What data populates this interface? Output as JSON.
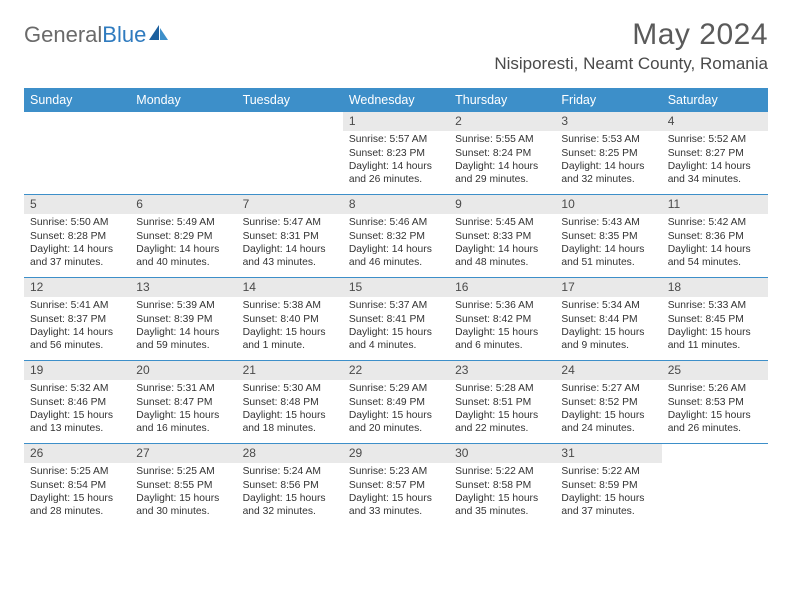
{
  "logo": {
    "part1": "General",
    "part2": "Blue"
  },
  "title": "May 2024",
  "location": "Nisiporesti, Neamt County, Romania",
  "colors": {
    "header_bg": "#3d8fc9",
    "daynum_bg": "#e9e9e9",
    "text": "#333333",
    "title": "#5a5a5a",
    "logo_gray": "#6a6a6a",
    "logo_blue": "#2f7bbf"
  },
  "dow": [
    "Sunday",
    "Monday",
    "Tuesday",
    "Wednesday",
    "Thursday",
    "Friday",
    "Saturday"
  ],
  "weeks": [
    [
      null,
      null,
      null,
      {
        "n": "1",
        "sr": "5:57 AM",
        "ss": "8:23 PM",
        "dl": "14 hours and 26 minutes."
      },
      {
        "n": "2",
        "sr": "5:55 AM",
        "ss": "8:24 PM",
        "dl": "14 hours and 29 minutes."
      },
      {
        "n": "3",
        "sr": "5:53 AM",
        "ss": "8:25 PM",
        "dl": "14 hours and 32 minutes."
      },
      {
        "n": "4",
        "sr": "5:52 AM",
        "ss": "8:27 PM",
        "dl": "14 hours and 34 minutes."
      }
    ],
    [
      {
        "n": "5",
        "sr": "5:50 AM",
        "ss": "8:28 PM",
        "dl": "14 hours and 37 minutes."
      },
      {
        "n": "6",
        "sr": "5:49 AM",
        "ss": "8:29 PM",
        "dl": "14 hours and 40 minutes."
      },
      {
        "n": "7",
        "sr": "5:47 AM",
        "ss": "8:31 PM",
        "dl": "14 hours and 43 minutes."
      },
      {
        "n": "8",
        "sr": "5:46 AM",
        "ss": "8:32 PM",
        "dl": "14 hours and 46 minutes."
      },
      {
        "n": "9",
        "sr": "5:45 AM",
        "ss": "8:33 PM",
        "dl": "14 hours and 48 minutes."
      },
      {
        "n": "10",
        "sr": "5:43 AM",
        "ss": "8:35 PM",
        "dl": "14 hours and 51 minutes."
      },
      {
        "n": "11",
        "sr": "5:42 AM",
        "ss": "8:36 PM",
        "dl": "14 hours and 54 minutes."
      }
    ],
    [
      {
        "n": "12",
        "sr": "5:41 AM",
        "ss": "8:37 PM",
        "dl": "14 hours and 56 minutes."
      },
      {
        "n": "13",
        "sr": "5:39 AM",
        "ss": "8:39 PM",
        "dl": "14 hours and 59 minutes."
      },
      {
        "n": "14",
        "sr": "5:38 AM",
        "ss": "8:40 PM",
        "dl": "15 hours and 1 minute."
      },
      {
        "n": "15",
        "sr": "5:37 AM",
        "ss": "8:41 PM",
        "dl": "15 hours and 4 minutes."
      },
      {
        "n": "16",
        "sr": "5:36 AM",
        "ss": "8:42 PM",
        "dl": "15 hours and 6 minutes."
      },
      {
        "n": "17",
        "sr": "5:34 AM",
        "ss": "8:44 PM",
        "dl": "15 hours and 9 minutes."
      },
      {
        "n": "18",
        "sr": "5:33 AM",
        "ss": "8:45 PM",
        "dl": "15 hours and 11 minutes."
      }
    ],
    [
      {
        "n": "19",
        "sr": "5:32 AM",
        "ss": "8:46 PM",
        "dl": "15 hours and 13 minutes."
      },
      {
        "n": "20",
        "sr": "5:31 AM",
        "ss": "8:47 PM",
        "dl": "15 hours and 16 minutes."
      },
      {
        "n": "21",
        "sr": "5:30 AM",
        "ss": "8:48 PM",
        "dl": "15 hours and 18 minutes."
      },
      {
        "n": "22",
        "sr": "5:29 AM",
        "ss": "8:49 PM",
        "dl": "15 hours and 20 minutes."
      },
      {
        "n": "23",
        "sr": "5:28 AM",
        "ss": "8:51 PM",
        "dl": "15 hours and 22 minutes."
      },
      {
        "n": "24",
        "sr": "5:27 AM",
        "ss": "8:52 PM",
        "dl": "15 hours and 24 minutes."
      },
      {
        "n": "25",
        "sr": "5:26 AM",
        "ss": "8:53 PM",
        "dl": "15 hours and 26 minutes."
      }
    ],
    [
      {
        "n": "26",
        "sr": "5:25 AM",
        "ss": "8:54 PM",
        "dl": "15 hours and 28 minutes."
      },
      {
        "n": "27",
        "sr": "5:25 AM",
        "ss": "8:55 PM",
        "dl": "15 hours and 30 minutes."
      },
      {
        "n": "28",
        "sr": "5:24 AM",
        "ss": "8:56 PM",
        "dl": "15 hours and 32 minutes."
      },
      {
        "n": "29",
        "sr": "5:23 AM",
        "ss": "8:57 PM",
        "dl": "15 hours and 33 minutes."
      },
      {
        "n": "30",
        "sr": "5:22 AM",
        "ss": "8:58 PM",
        "dl": "15 hours and 35 minutes."
      },
      {
        "n": "31",
        "sr": "5:22 AM",
        "ss": "8:59 PM",
        "dl": "15 hours and 37 minutes."
      },
      null
    ]
  ],
  "labels": {
    "sunrise_prefix": "Sunrise: ",
    "sunset_prefix": "Sunset: ",
    "daylight_prefix": "Daylight: "
  }
}
